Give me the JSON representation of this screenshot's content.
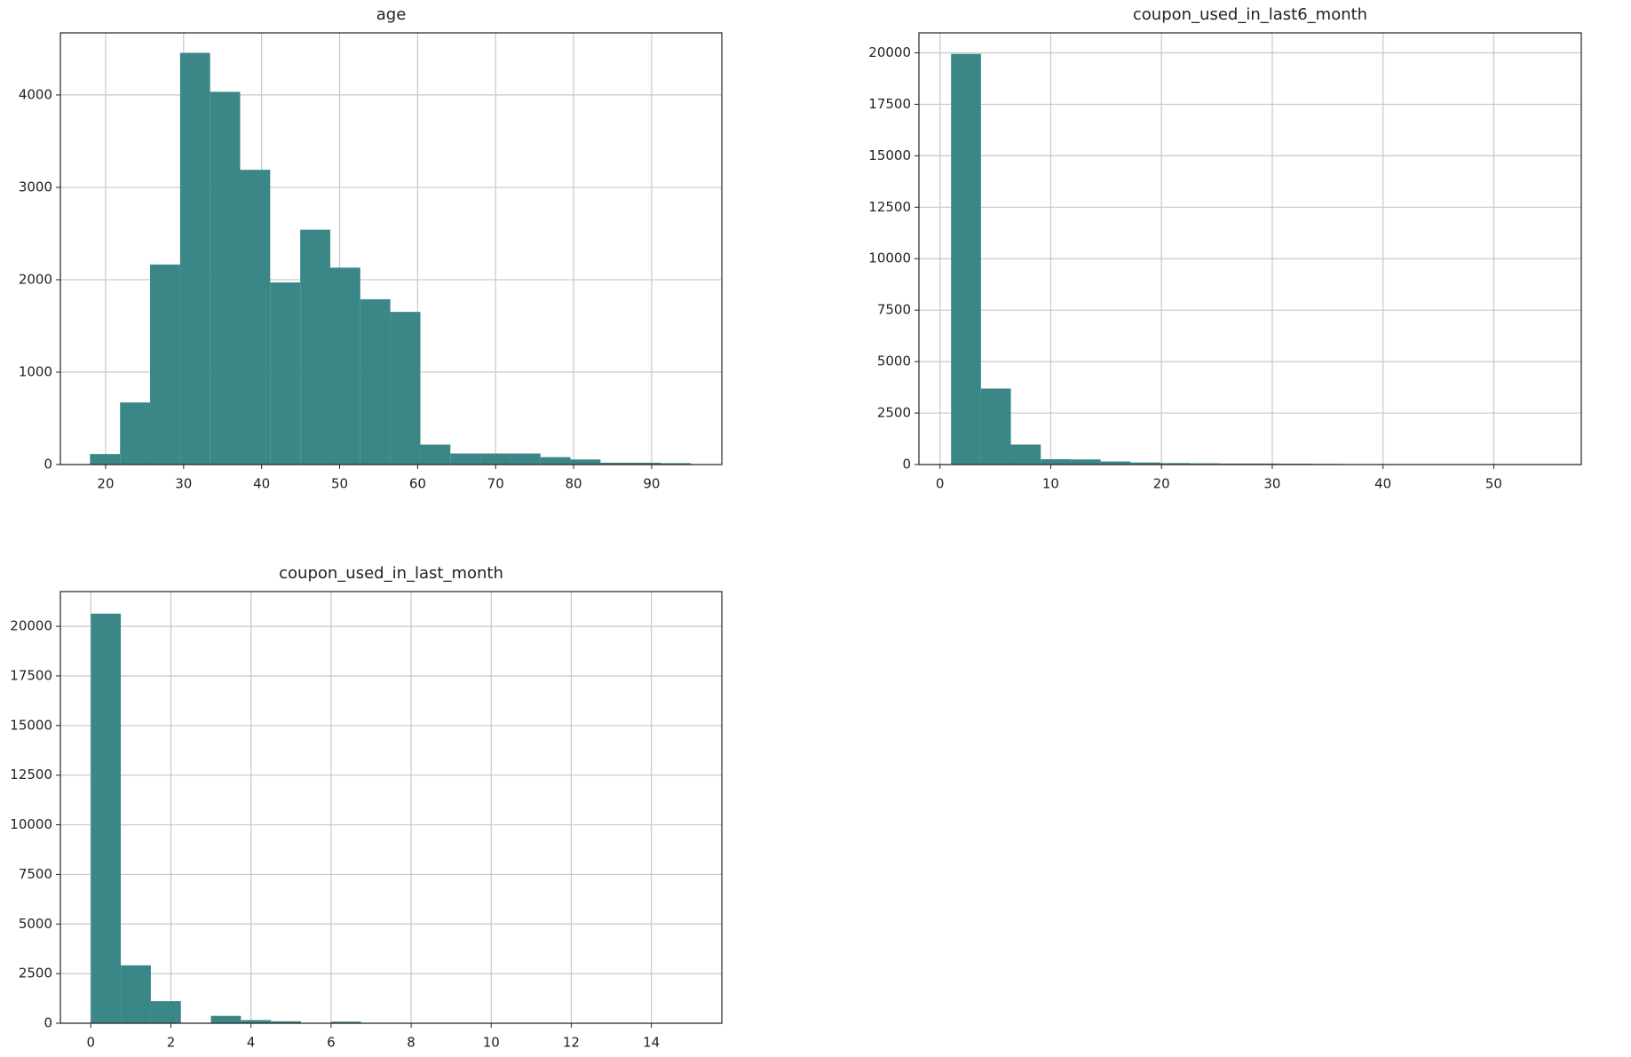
{
  "chart_data": [
    {
      "type": "histogram",
      "title": "age",
      "color": "#3b8686",
      "grid": true,
      "bins": [
        18,
        21.85,
        25.7,
        29.55,
        33.4,
        37.25,
        41.1,
        44.95,
        48.8,
        52.65,
        56.5,
        60.35,
        64.2,
        68.05,
        71.9,
        75.75,
        79.6,
        83.45,
        87.3,
        91.15,
        95
      ],
      "values": [
        114,
        672,
        2165,
        4456,
        4034,
        3190,
        1971,
        2541,
        2131,
        1789,
        1652,
        216,
        120,
        120,
        120,
        80,
        55,
        20,
        20,
        15
      ],
      "xlim": [
        14.2,
        99
      ],
      "ylim": [
        0,
        4672
      ],
      "xticks": [
        20,
        30,
        40,
        50,
        60,
        70,
        80,
        90
      ],
      "yticks": [
        0,
        1000,
        2000,
        3000,
        4000
      ]
    },
    {
      "type": "histogram",
      "title": "coupon_used_in_last6_month",
      "color": "#3b8686",
      "grid": true,
      "bins": [
        1,
        3.7,
        6.4,
        9.1,
        11.8,
        14.5,
        17.2,
        19.9,
        22.6,
        25.3,
        28,
        30.7,
        33.4,
        36.1,
        38.8,
        41.5,
        44.2,
        46.9,
        49.6,
        52.3,
        55
      ],
      "values": [
        19950,
        3690,
        970,
        260,
        250,
        150,
        100,
        70,
        60,
        50,
        50,
        40,
        30,
        5,
        3,
        2,
        2,
        1,
        1,
        1
      ],
      "xlim": [
        -1.9,
        57.9
      ],
      "ylim": [
        0,
        20970
      ],
      "xticks": [
        0,
        10,
        20,
        30,
        40,
        50
      ],
      "yticks": [
        0,
        2500,
        5000,
        7500,
        10000,
        12500,
        15000,
        17500,
        20000
      ]
    },
    {
      "type": "histogram",
      "title": "coupon_used_in_last_month",
      "color": "#3b8686",
      "grid": true,
      "bins": [
        0,
        0.75,
        1.5,
        2.25,
        3,
        3.75,
        4.5,
        5.25,
        6,
        6.75,
        7.5,
        8.25,
        9,
        9.75,
        10.5,
        11.25,
        12,
        12.75,
        13.5,
        14.25,
        15
      ],
      "values": [
        20637,
        2918,
        1114,
        0,
        371,
        160,
        100,
        0,
        80,
        5,
        3,
        2,
        2,
        1,
        1,
        1,
        1,
        1,
        1,
        1
      ],
      "xlim": [
        -0.76,
        15.76
      ],
      "ylim": [
        0,
        21750
      ],
      "xticks": [
        0,
        2,
        4,
        6,
        8,
        10,
        12,
        14
      ],
      "yticks": [
        0,
        2500,
        5000,
        7500,
        10000,
        12500,
        15000,
        17500,
        20000
      ]
    }
  ]
}
